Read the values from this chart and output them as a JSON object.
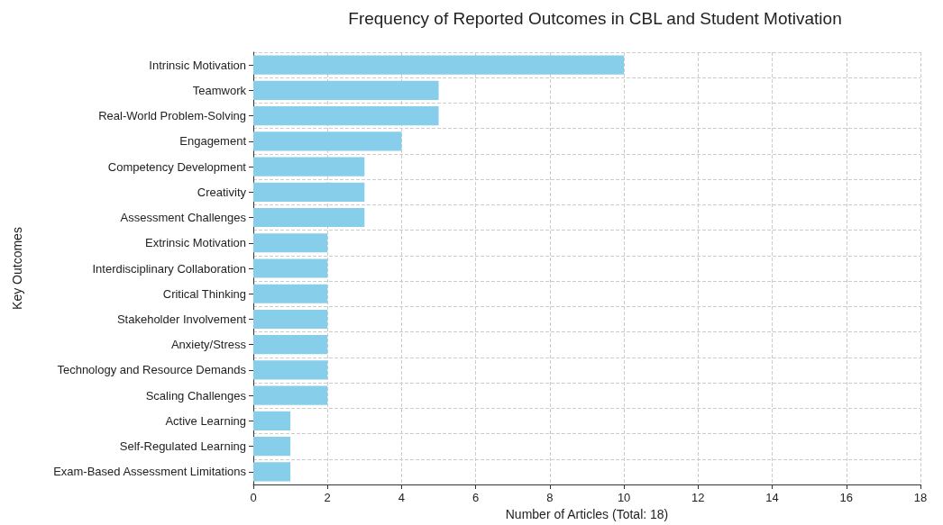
{
  "chart_data": {
    "type": "bar",
    "orientation": "horizontal",
    "title": "Frequency of Reported Outcomes in CBL and Student Motivation",
    "xlabel": "Number of Articles (Total: 18)",
    "ylabel": "Key Outcomes",
    "categories": [
      "Intrinsic Motivation",
      "Teamwork",
      "Real-World Problem-Solving",
      "Engagement",
      "Competency Development",
      "Creativity",
      "Assessment Challenges",
      "Extrinsic Motivation",
      "Interdisciplinary Collaboration",
      "Critical Thinking",
      "Stakeholder Involvement",
      "Anxiety/Stress",
      "Technology and Resource Demands",
      "Scaling Challenges",
      "Active Learning",
      "Self-Regulated Learning",
      "Exam-Based Assessment Limitations"
    ],
    "values": [
      10,
      5,
      5,
      4,
      3,
      3,
      3,
      2,
      2,
      2,
      2,
      2,
      2,
      2,
      1,
      1,
      1
    ],
    "color": "#87ceeb",
    "xlim": [
      0,
      18
    ],
    "xticks": [
      0,
      2,
      4,
      6,
      8,
      10,
      12,
      14,
      16,
      18
    ],
    "grid": true,
    "line_style": "dashed"
  }
}
